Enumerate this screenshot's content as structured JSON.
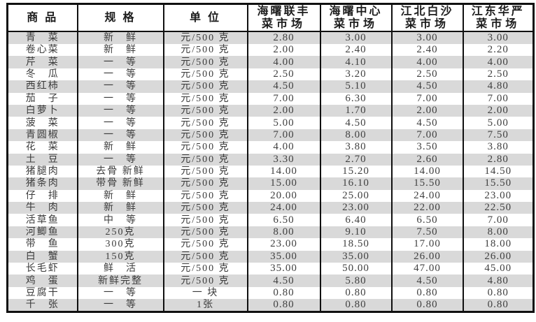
{
  "table": {
    "headers": {
      "product": "商 品",
      "spec": "规 格",
      "unit": "单 位"
    },
    "markets": [
      {
        "line1": "海曙联丰",
        "line2": "菜市场"
      },
      {
        "line1": "海曙中心",
        "line2": "菜市场"
      },
      {
        "line1": "江北白沙",
        "line2": "菜市场"
      },
      {
        "line1": "江东华严",
        "line2": "菜市场"
      }
    ],
    "rows": [
      {
        "product": "青　菜",
        "spec": "新　鲜",
        "unit": "元/500 克",
        "prices": [
          "2.80",
          "3.00",
          "3.00",
          "3.00"
        ]
      },
      {
        "product": "卷心菜",
        "spec": "新　鲜",
        "unit": "元/500 克",
        "prices": [
          "2.00",
          "2.40",
          "2.40",
          "2.20"
        ]
      },
      {
        "product": "芹　菜",
        "spec": "一　等",
        "unit": "元/500 克",
        "prices": [
          "4.00",
          "4.10",
          "4.00",
          "4.00"
        ]
      },
      {
        "product": "冬　瓜",
        "spec": "一　等",
        "unit": "元/500 克",
        "prices": [
          "2.50",
          "3.20",
          "2.50",
          "2.50"
        ]
      },
      {
        "product": "西红柿",
        "spec": "一　等",
        "unit": "元/500 克",
        "prices": [
          "4.50",
          "5.10",
          "4.50",
          "4.80"
        ]
      },
      {
        "product": "茄　子",
        "spec": "一　等",
        "unit": "元/500 克",
        "prices": [
          "7.00",
          "6.30",
          "7.00",
          "7.00"
        ]
      },
      {
        "product": "白萝卜",
        "spec": "一　等",
        "unit": "元/500 克",
        "prices": [
          "2.00",
          "1.70",
          "2.00",
          "2.00"
        ]
      },
      {
        "product": "菠　菜",
        "spec": "一　等",
        "unit": "元/500 克",
        "prices": [
          "5.00",
          "4.50",
          "4.50",
          "5.00"
        ]
      },
      {
        "product": "青圆椒",
        "spec": "一　等",
        "unit": "元/500 克",
        "prices": [
          "7.00",
          "8.00",
          "7.00",
          "7.50"
        ]
      },
      {
        "product": "花　菜",
        "spec": "新　鲜",
        "unit": "元/500 克",
        "prices": [
          "4.00",
          "3.80",
          "3.50",
          "3.80"
        ]
      },
      {
        "product": "土　豆",
        "spec": "一　等",
        "unit": "元/500 克",
        "prices": [
          "3.30",
          "2.70",
          "2.60",
          "2.80"
        ]
      },
      {
        "product": "猪腿肉",
        "spec": "去骨 新鲜",
        "unit": "元/500 克",
        "prices": [
          "14.00",
          "15.20",
          "14.00",
          "14.50"
        ]
      },
      {
        "product": "猪条肉",
        "spec": "带骨 新鲜",
        "unit": "元/500 克",
        "prices": [
          "15.00",
          "16.10",
          "15.50",
          "15.50"
        ]
      },
      {
        "product": "仔　排",
        "spec": "新　鲜",
        "unit": "元/500 克",
        "prices": [
          "20.00",
          "25.00",
          "24.00",
          "23.00"
        ]
      },
      {
        "product": "牛　肉",
        "spec": "新　鲜",
        "unit": "元/500 克",
        "prices": [
          "24.00",
          "23.00",
          "22.00",
          "22.50"
        ]
      },
      {
        "product": "活草鱼",
        "spec": "中　等",
        "unit": "元/500 克",
        "prices": [
          "6.50",
          "6.40",
          "6.50",
          "7.00"
        ]
      },
      {
        "product": "河鲫鱼",
        "spec": "250克",
        "unit": "元/500 克",
        "prices": [
          "8.00",
          "9.10",
          "7.50",
          "8.00"
        ]
      },
      {
        "product": "带　鱼",
        "spec": "300克",
        "unit": "元/500 克",
        "prices": [
          "23.00",
          "18.50",
          "17.00",
          "18.00"
        ]
      },
      {
        "product": "白　蟹",
        "spec": "150克",
        "unit": "元/500 克",
        "prices": [
          "35.00",
          "35.00",
          "26.00",
          "26.00"
        ]
      },
      {
        "product": "长毛虾",
        "spec": "鲜　活",
        "unit": "元/500 克",
        "prices": [
          "35.00",
          "50.00",
          "47.00",
          "45.00"
        ]
      },
      {
        "product": "鸡　蛋",
        "spec": "新鲜完整",
        "unit": "元/500 克",
        "prices": [
          "4.50",
          "5.80",
          "4.50",
          "4.80"
        ]
      },
      {
        "product": "豆腐干",
        "spec": "一　等",
        "unit": "一 块",
        "prices": [
          "0.80",
          "0.80",
          "0.80",
          "0.80"
        ]
      },
      {
        "product": "千　张",
        "spec": "一　等",
        "unit": "1张",
        "prices": [
          "0.80",
          "0.80",
          "0.80",
          "0.80"
        ]
      }
    ]
  }
}
